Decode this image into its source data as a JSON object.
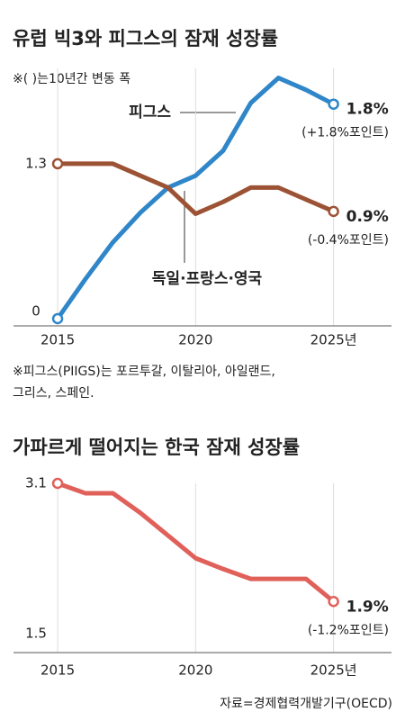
{
  "chart_data": [
    {
      "type": "line",
      "title": "유럽 빅3와 피그스의 잠재 성장률",
      "subtitle": "※( )는10년간 변동 폭",
      "x": [
        2015,
        2016,
        2017,
        2018,
        2019,
        2020,
        2021,
        2022,
        2023,
        2024,
        2025
      ],
      "xlim": [
        2013.4,
        2027.1
      ],
      "xticks": [
        2015,
        2020,
        {
          "value": 2025,
          "label": "2025년"
        }
      ],
      "ylim": [
        0,
        2.1
      ],
      "yticks": [
        0,
        1.3
      ],
      "grid": true,
      "series": [
        {
          "name": "피그스",
          "color": "#2f86c8",
          "values": [
            0,
            0.33,
            0.64,
            0.89,
            1.1,
            1.2,
            1.41,
            1.81,
            2.02,
            1.92,
            1.8
          ],
          "value_labels": [
            null,
            null,
            null,
            null,
            null,
            null,
            null,
            null,
            null,
            null,
            "1.8%"
          ],
          "change": "(+1.8%포인트)"
        },
        {
          "name": "독일·프랑스·영국",
          "color": "#9c5234",
          "values": [
            1.3,
            1.3,
            1.3,
            1.2,
            1.1,
            0.88,
            0.98,
            1.1,
            1.1,
            1.0,
            0.9
          ],
          "value_labels": [
            null,
            null,
            null,
            null,
            null,
            null,
            null,
            null,
            null,
            null,
            "0.9%"
          ],
          "change": "(-0.4%포인트)"
        }
      ],
      "note": [
        "※피그스(PIIGS)는 포르투갈, 이탈리아, 아일랜드,",
        "그리스, 스페인."
      ]
    },
    {
      "type": "line",
      "title": "가파르게 떨어지는 한국 잠재 성장률",
      "x": [
        2015,
        2016,
        2017,
        2018,
        2019,
        2020,
        2021,
        2022,
        2023,
        2024,
        2025
      ],
      "xlim": [
        2013.4,
        2027.1
      ],
      "xticks": [
        2015,
        2020,
        {
          "value": 2025,
          "label": "2025년"
        }
      ],
      "ylim": [
        1.5,
        3.1
      ],
      "yticks": [
        1.5,
        3.1
      ],
      "grid": true,
      "series": [
        {
          "name": "한국",
          "color": "#e0605a",
          "values": [
            3.1,
            3.0,
            3.0,
            2.8,
            2.57,
            2.34,
            2.23,
            2.13,
            2.13,
            2.13,
            1.9
          ],
          "value_labels": [
            null,
            null,
            null,
            null,
            null,
            null,
            null,
            null,
            null,
            null,
            "1.9%"
          ],
          "change": "(-1.2%포인트)"
        }
      ],
      "source": "자료=경제협력개발기구(OECD)"
    }
  ]
}
